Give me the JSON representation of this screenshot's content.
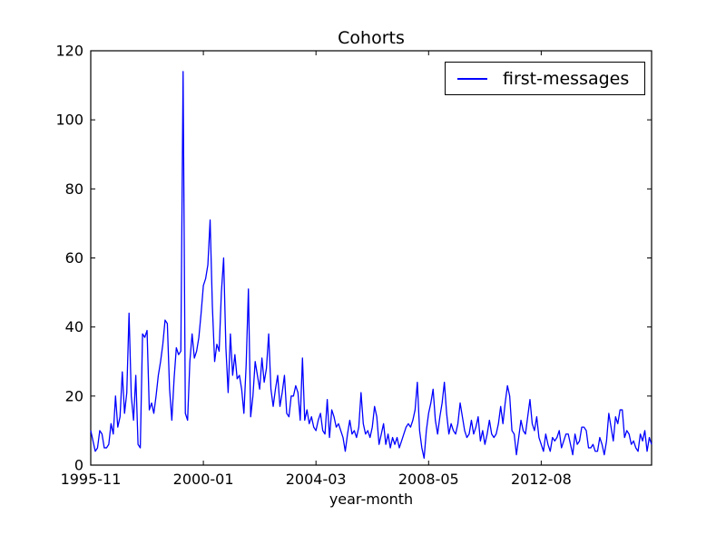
{
  "figure": {
    "title": "Cohorts",
    "xlabel": "year-month",
    "background": "#ffffff",
    "axes_color": "#000000"
  },
  "legend": {
    "label": "first-messages"
  },
  "chart_data": {
    "type": "line",
    "title": "Cohorts",
    "xlabel": "year-month",
    "ylabel": "",
    "ylim": [
      0,
      120
    ],
    "y_ticks": [
      0,
      20,
      40,
      60,
      80,
      100,
      120
    ],
    "x_tick_indices": [
      0,
      50,
      100,
      150,
      200
    ],
    "x_tick_labels": [
      "1995-11",
      "2000-01",
      "2004-03",
      "2008-05",
      "2012-08"
    ],
    "x_description": "monthly cohort index starting at 1995-11, one point per month",
    "grid": false,
    "legend_position": "upper right",
    "series": [
      {
        "name": "first-messages",
        "color": "#0000ff",
        "values": [
          10,
          7,
          4,
          5,
          10,
          9,
          5,
          5,
          6,
          12,
          9,
          20,
          11,
          14,
          27,
          15,
          21,
          44,
          20,
          13,
          26,
          6,
          5,
          38,
          37,
          39,
          16,
          18,
          15,
          20,
          26,
          30,
          35,
          42,
          41,
          22,
          13,
          25,
          34,
          32,
          33,
          114,
          15,
          13,
          30,
          38,
          31,
          33,
          37,
          44,
          52,
          54,
          58,
          71,
          46,
          30,
          35,
          33,
          50,
          60,
          34,
          21,
          38,
          26,
          32,
          25,
          26,
          22,
          15,
          29,
          51,
          14,
          20,
          30,
          26,
          22,
          31,
          24,
          28,
          38,
          22,
          17,
          22,
          26,
          17,
          21,
          26,
          15,
          14,
          20,
          20,
          23,
          21,
          13,
          31,
          13,
          16,
          12,
          14,
          11,
          10,
          13,
          15,
          10,
          9,
          19,
          8,
          16,
          14,
          11,
          12,
          10,
          8,
          4,
          9,
          13,
          9,
          10,
          8,
          11,
          21,
          12,
          9,
          10,
          8,
          11,
          17,
          14,
          6,
          9,
          12,
          6,
          9,
          5,
          8,
          6,
          8,
          5,
          7,
          9,
          11,
          12,
          11,
          13,
          16,
          24,
          10,
          5,
          2,
          10,
          15,
          18,
          22,
          13,
          9,
          14,
          18,
          24,
          15,
          9,
          12,
          10,
          9,
          12,
          18,
          14,
          10,
          8,
          9,
          13,
          9,
          11,
          14,
          7,
          10,
          6,
          9,
          13,
          9,
          8,
          9,
          12,
          17,
          12,
          18,
          23,
          20,
          10,
          9,
          3,
          8,
          13,
          10,
          9,
          14,
          19,
          12,
          10,
          14,
          8,
          6,
          4,
          9,
          6,
          4,
          8,
          7,
          8,
          10,
          5,
          7,
          9,
          9,
          6,
          3,
          9,
          6,
          7,
          11,
          11,
          10,
          5,
          5,
          6,
          4,
          4,
          8,
          6,
          3,
          7,
          15,
          11,
          7,
          14,
          12,
          16,
          16,
          8,
          10,
          9,
          6,
          7,
          5,
          4,
          9,
          7,
          10,
          4,
          8,
          6
        ]
      }
    ]
  }
}
